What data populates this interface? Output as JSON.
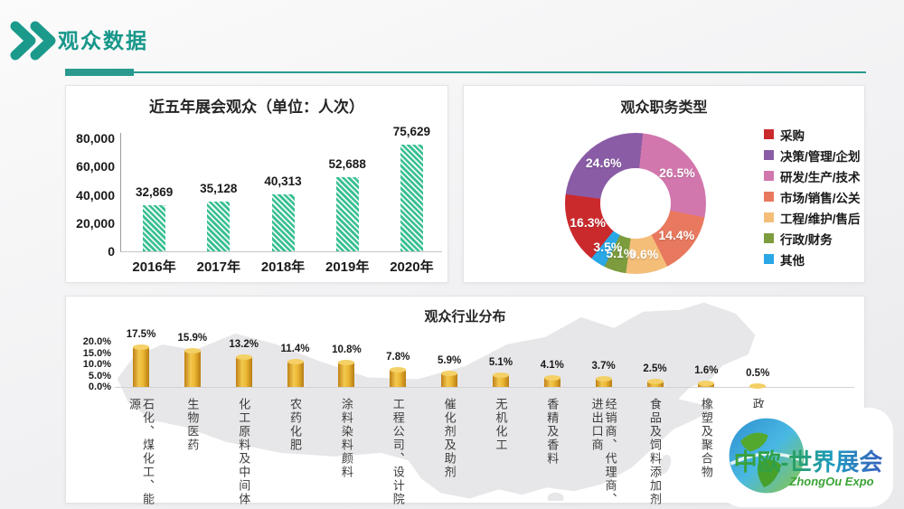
{
  "header": {
    "title": "观众数据"
  },
  "logo": {
    "name": "中欧-世界展会",
    "subtitle": "ZhongOu Expo"
  },
  "colors": {
    "accent_teal": "#17978a",
    "visitors_bar": "#38bf93",
    "industry_bar": "#e3a82a",
    "map_gray": "#e7e7e9"
  },
  "chart_data": [
    {
      "id": "visitors",
      "type": "bar",
      "title": "近五年展会观众（单位：人次）",
      "categories": [
        "2016年",
        "2017年",
        "2018年",
        "2019年",
        "2020年"
      ],
      "values": [
        32869,
        35128,
        40313,
        52688,
        75629
      ],
      "value_labels": [
        "32,869",
        "35,128",
        "40,313",
        "52,688",
        "75,629"
      ],
      "ylim": [
        0,
        80000
      ],
      "yticks": [
        {
          "value": 80000,
          "label": "80,000"
        },
        {
          "value": 60000,
          "label": "60,000"
        },
        {
          "value": 40000,
          "label": "40,000"
        },
        {
          "value": 20000,
          "label": "20,000"
        },
        {
          "value": 0,
          "label": "0"
        }
      ],
      "bar_style": "diagonal-hatch-green",
      "grid": false
    },
    {
      "id": "jobs",
      "type": "pie",
      "subtype": "donut",
      "title": "观众职务类型",
      "legend_position": "right",
      "start_angle_deg": 218.8,
      "segments": [
        {
          "label": "采购",
          "value": 16.3,
          "label_text": "16.3%",
          "color": "#cb2a2d"
        },
        {
          "label": "决策/管理/企划",
          "value": 24.6,
          "label_text": "24.6%",
          "color": "#8a5ca6"
        },
        {
          "label": "研发/生产/技术",
          "value": 26.5,
          "label_text": "26.5%",
          "color": "#d277ad"
        },
        {
          "label": "市场/销售/公关",
          "value": 14.4,
          "label_text": "14.4%",
          "color": "#e8795f"
        },
        {
          "label": "工程/维护/售后",
          "value": 9.6,
          "label_text": "9.6%",
          "color": "#f4be79"
        },
        {
          "label": "行政/财务",
          "value": 5.1,
          "label_text": "5.1%",
          "color": "#7c9c3d"
        },
        {
          "label": "其他",
          "value": 3.5,
          "label_text": "3.5%",
          "color": "#2aa7e5"
        }
      ]
    },
    {
      "id": "industry",
      "type": "bar",
      "title": "观众行业分布",
      "categories": [
        "石化、煤化工、能源",
        "生物医药",
        "化工原料及中间体",
        "农药化肥",
        "涂料染料颜料",
        "工程公司、设计院",
        "催化剂及助剂",
        "无机化工",
        "香精及香料",
        "经销商、代理商、进出口商",
        "食品及饲料添加剂",
        "橡塑及聚合物",
        "政府"
      ],
      "values": [
        17.5,
        15.9,
        13.2,
        11.4,
        10.8,
        7.8,
        5.9,
        5.1,
        4.1,
        3.7,
        2.5,
        1.6,
        0.5
      ],
      "value_labels": [
        "17.5%",
        "15.9%",
        "13.2%",
        "11.4%",
        "10.8%",
        "7.8%",
        "5.9%",
        "5.1%",
        "4.1%",
        "3.7%",
        "2.5%",
        "1.6%",
        "0.5%"
      ],
      "ylim": [
        0,
        20
      ],
      "yticks": [
        {
          "value": 20,
          "label": "20.0%"
        },
        {
          "value": 15,
          "label": "15.0%"
        },
        {
          "value": 10,
          "label": "10.0%"
        },
        {
          "value": 5,
          "label": "5.0%"
        },
        {
          "value": 0,
          "label": "0.0%"
        }
      ],
      "bar_style": "gold-cylinder",
      "background": "china-map-silhouette",
      "grid": false
    }
  ]
}
